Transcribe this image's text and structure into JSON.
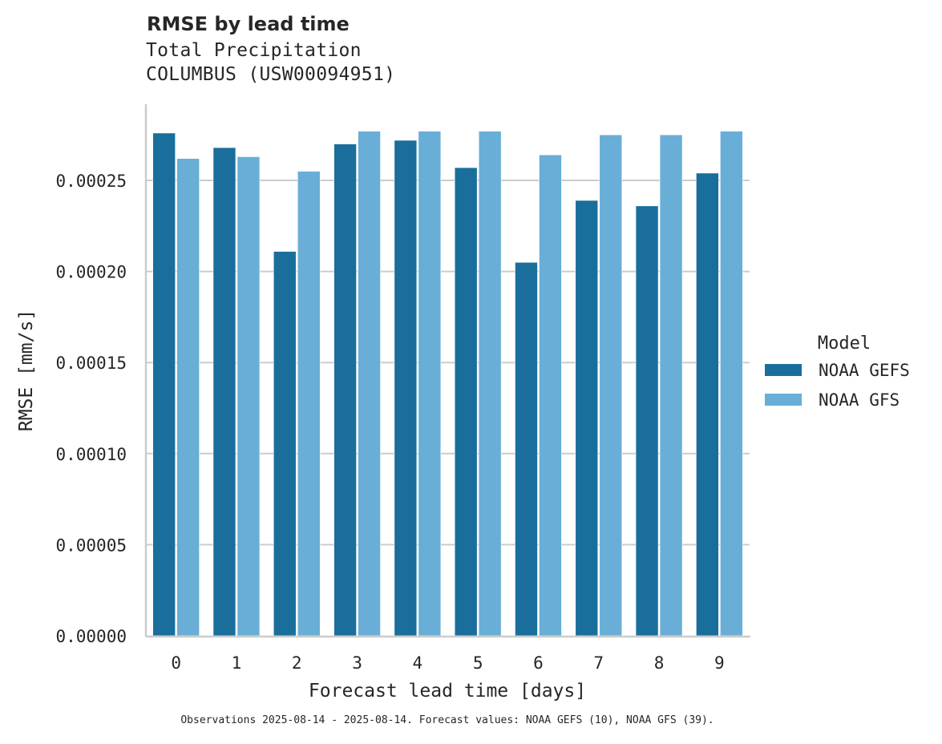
{
  "header": {
    "title": "RMSE by lead time",
    "subtitle_line1": "Total Precipitation",
    "subtitle_line2": "COLUMBUS (USW00094951)"
  },
  "footnote": "Observations 2025-08-14 - 2025-08-14. Forecast values: NOAA GEFS (10), NOAA GFS (39).",
  "colors": {
    "NOAA GEFS": "#1a6e9c",
    "NOAA GFS": "#68aed7",
    "grid": "#cccccc",
    "axis": "#cccccc",
    "text": "#262626"
  },
  "chart_data": {
    "type": "bar",
    "title": "RMSE by lead time",
    "subtitle": "Total Precipitation — COLUMBUS (USW00094951)",
    "xlabel": "Forecast lead time [days]",
    "ylabel": "RMSE [mm/s]",
    "categories": [
      "0",
      "1",
      "2",
      "3",
      "4",
      "5",
      "6",
      "7",
      "8",
      "9"
    ],
    "series": [
      {
        "name": "NOAA GEFS",
        "values": [
          0.000276,
          0.000268,
          0.000211,
          0.00027,
          0.000272,
          0.000257,
          0.000205,
          0.000239,
          0.000236,
          0.000254
        ]
      },
      {
        "name": "NOAA GFS",
        "values": [
          0.000262,
          0.000263,
          0.000255,
          0.000277,
          0.000277,
          0.000277,
          0.000264,
          0.000275,
          0.000275,
          0.000277
        ]
      }
    ],
    "yticks": [
      "0.00000",
      "0.00005",
      "0.00010",
      "0.00015",
      "0.00020",
      "0.00025"
    ],
    "ylim": [
      0,
      0.00029
    ],
    "grid": "horizontal",
    "legend": {
      "title": "Model",
      "position": "right",
      "entries": [
        "NOAA GEFS",
        "NOAA GFS"
      ]
    }
  }
}
